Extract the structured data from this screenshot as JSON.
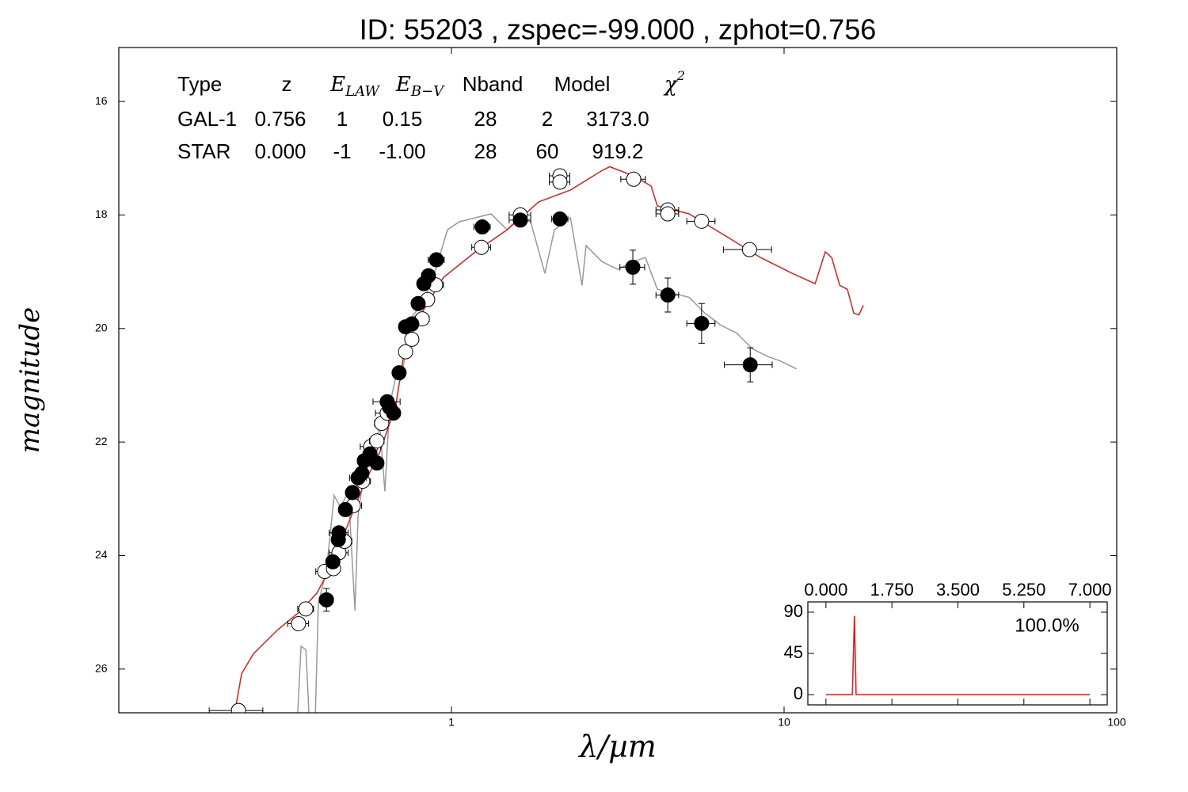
{
  "chart_data": [
    {
      "type": "scatter",
      "title": "ID:  55203 , zspec=-99.000 , zphot=0.756",
      "xlabel": "λ/µm",
      "ylabel": "magnitude",
      "xscale": "log",
      "xlim": [
        0.1,
        100
      ],
      "xticks": [
        1,
        10,
        100
      ],
      "ylim": [
        15.05,
        26.77
      ],
      "yinvert": true,
      "yticks": [
        16,
        18,
        20,
        22,
        24,
        26
      ],
      "fit_table": {
        "columns": [
          {
            "main": "Type"
          },
          {
            "main": "z"
          },
          {
            "main": "E",
            "sub": "LAW"
          },
          {
            "main": "E",
            "sub": "B−V"
          },
          {
            "main": "Nband"
          },
          {
            "main": "Model"
          },
          {
            "main": "χ",
            "sup": "2"
          }
        ],
        "rows": [
          {
            "color": "#e0201b",
            "cells": [
              "GAL-1",
              "0.756",
              "1",
              "0.15",
              "28",
              "2",
              "3173.0"
            ]
          },
          {
            "color": "#999999",
            "cells": [
              "STAR",
              "0.000",
              "-1",
              "-1.00",
              "28",
              "60",
              "919.2"
            ]
          }
        ]
      },
      "series": [
        {
          "mode": "line",
          "color": "#999999",
          "x": [
            0.345,
            0.353,
            0.365,
            0.373,
            0.39,
            0.398,
            0.421,
            0.444,
            0.464,
            0.49,
            0.513,
            0.524,
            0.553,
            0.584,
            0.61,
            0.631,
            0.652,
            0.681,
            0.704,
            0.76,
            0.826,
            0.896,
            0.973,
            1.056,
            1.18,
            1.315,
            1.47,
            1.594,
            1.73,
            1.91,
            2.04,
            2.28,
            2.47,
            2.54,
            2.83,
            3.16,
            3.53,
            3.83,
            4.16,
            4.64,
            5.18,
            5.78,
            6.45,
            7.2,
            8.04,
            8.98,
            9.71,
            10.9
          ],
          "y": [
            26.78,
            25.6,
            25.66,
            26.78,
            26.78,
            24.83,
            24.27,
            22.94,
            23.15,
            22.87,
            24.97,
            23.3,
            22.31,
            22.03,
            21.75,
            22.87,
            21.34,
            20.85,
            20.92,
            19.8,
            19.52,
            18.96,
            18.26,
            18.12,
            18.05,
            17.98,
            18.26,
            18.05,
            18.12,
            19.03,
            18.26,
            18.05,
            19.24,
            18.54,
            18.82,
            18.96,
            18.82,
            18.75,
            19.31,
            19.38,
            19.45,
            19.73,
            19.94,
            20.08,
            20.36,
            20.5,
            20.57,
            20.71
          ]
        },
        {
          "mode": "line",
          "color": "#e0201b",
          "x": [
            0.224,
            0.234,
            0.254,
            0.3,
            0.353,
            0.394,
            0.44,
            0.49,
            0.547,
            0.61,
            0.681,
            0.72,
            0.8,
            0.946,
            1.18,
            1.47,
            1.83,
            2.28,
            2.83,
            2.99,
            3.53,
            3.98,
            4.16,
            5.18,
            6.81,
            8.5,
            10.6,
            12.4,
            13.3,
            13.9,
            14.7,
            15.5,
            16.2,
            16.8,
            17.3
          ],
          "y": [
            26.71,
            26.08,
            25.73,
            25.31,
            24.97,
            24.66,
            24.13,
            23.43,
            22.73,
            22.17,
            21.34,
            20.43,
            19.8,
            19.1,
            18.65,
            18.26,
            17.77,
            17.56,
            17.22,
            17.15,
            17.31,
            17.49,
            17.84,
            17.98,
            18.4,
            18.75,
            19.03,
            19.21,
            18.65,
            18.75,
            19.24,
            19.31,
            19.73,
            19.76,
            19.59
          ]
        },
        {
          "mode": "markers",
          "color": "#000000",
          "marker_fill": "#ffffff",
          "x": [
            0.229,
            0.347,
            0.365,
            0.416,
            0.442,
            0.459,
            0.477,
            0.507,
            0.541,
            0.572,
            0.597,
            0.617,
            0.641,
            0.728,
            0.76,
            0.817,
            0.848,
            0.896,
            1.231,
            1.611,
            2.119,
            2.119,
            3.53,
            4.47,
            4.47,
            5.65,
            7.87
          ],
          "y": [
            26.73,
            25.2,
            24.94,
            24.28,
            24.23,
            23.95,
            23.75,
            23.12,
            22.69,
            22.08,
            21.98,
            21.67,
            21.49,
            20.41,
            20.19,
            19.83,
            19.49,
            19.23,
            18.57,
            18.0,
            17.31,
            17.42,
            17.37,
            17.91,
            17.98,
            18.11,
            18.61
          ],
          "xerr": [
            0.042,
            0.025,
            0.02,
            0.025,
            0.02,
            0.03,
            0.025,
            0.03,
            0.03,
            0.04,
            0.03,
            0.03,
            0.05,
            0.03,
            0.03,
            0.04,
            0.03,
            0.05,
            0.08,
            0.12,
            0.15,
            0.15,
            0.3,
            0.35,
            0.35,
            0.55,
            1.3
          ],
          "yerr": [
            0.05,
            0.05,
            0.05,
            0.05,
            0.05,
            0.05,
            0.05,
            0.05,
            0.05,
            0.05,
            0.05,
            0.05,
            0.05,
            0.05,
            0.05,
            0.05,
            0.05,
            0.05,
            0.05,
            0.05,
            0.05,
            0.05,
            0.05,
            0.05,
            0.05,
            0.05,
            0.05
          ]
        },
        {
          "mode": "markers",
          "color": "#000000",
          "marker_fill": "#000000",
          "x": [
            0.421,
            0.44,
            0.457,
            0.459,
            0.48,
            0.504,
            0.524,
            0.538,
            0.547,
            0.569,
            0.597,
            0.641,
            0.652,
            0.67,
            0.696,
            0.728,
            0.76,
            0.794,
            0.826,
            0.853,
            0.901,
            1.238,
            1.611,
            2.119,
            3.51,
            4.47,
            5.65,
            7.91
          ],
          "y": [
            24.78,
            24.11,
            23.72,
            23.6,
            23.19,
            22.89,
            22.63,
            22.55,
            22.33,
            22.21,
            22.37,
            21.29,
            21.39,
            21.49,
            20.78,
            19.97,
            19.92,
            19.56,
            19.21,
            19.07,
            18.79,
            18.21,
            18.09,
            18.07,
            18.92,
            19.41,
            19.91,
            20.64
          ],
          "xerr": [
            0.02,
            0.02,
            0.02,
            0.03,
            0.02,
            0.02,
            0.03,
            0.02,
            0.02,
            0.02,
            0.02,
            0.06,
            0.03,
            0.02,
            0.02,
            0.03,
            0.03,
            0.03,
            0.03,
            0.03,
            0.05,
            0.07,
            0.12,
            0.12,
            0.3,
            0.35,
            0.55,
            1.3
          ],
          "yerr": [
            0.2,
            0.05,
            0.05,
            0.05,
            0.05,
            0.05,
            0.05,
            0.05,
            0.05,
            0.05,
            0.05,
            0.05,
            0.05,
            0.05,
            0.05,
            0.05,
            0.05,
            0.05,
            0.05,
            0.05,
            0.05,
            0.05,
            0.05,
            0.05,
            0.3,
            0.3,
            0.35,
            0.3
          ]
        }
      ]
    },
    {
      "type": "line",
      "annotation": "100.0%",
      "color": "#e0201b",
      "xlim": [
        -0.48,
        7.46
      ],
      "xticks": [
        {
          "value": 0,
          "label": "0.000"
        },
        {
          "value": 1.75,
          "label": "1.750"
        },
        {
          "value": 3.5,
          "label": "3.500"
        },
        {
          "value": 5.25,
          "label": "5.250"
        },
        {
          "value": 7,
          "label": "7.000"
        }
      ],
      "ylim": [
        -11.2,
        101.2
      ],
      "yticks": [
        0,
        45,
        90
      ],
      "x": [
        0,
        0.7,
        0.756,
        0.8,
        7.0
      ],
      "y": [
        0,
        0,
        86,
        0,
        0
      ]
    }
  ]
}
